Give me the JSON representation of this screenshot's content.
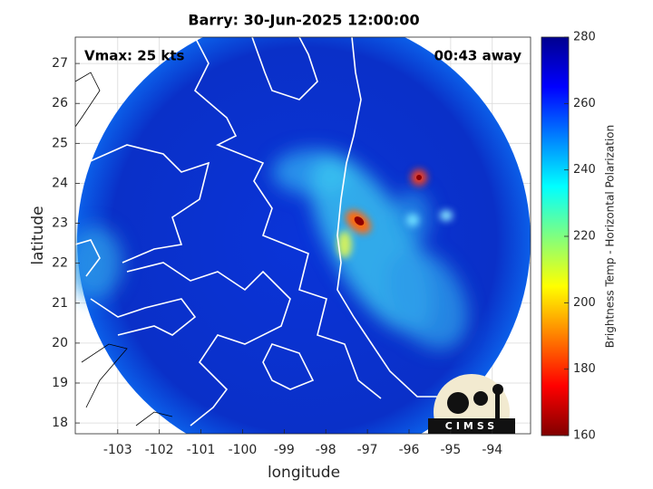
{
  "chart_data": {
    "type": "map",
    "title": "Barry: 30-Jun-2025 12:00:00",
    "annotations": [
      "Vmax: 25 kts",
      "00:43 away"
    ],
    "xlabel": "longitude",
    "ylabel": "latitude",
    "xlim": [
      -104.02,
      -93.08
    ],
    "ylim": [
      17.73,
      27.66
    ],
    "xticks": [
      -103,
      -102,
      -101,
      -100,
      -99,
      -98,
      -97,
      -96,
      -95,
      -94
    ],
    "yticks": [
      18,
      19,
      20,
      21,
      22,
      23,
      24,
      25,
      26,
      27
    ],
    "grid": true,
    "colorbar": {
      "label": "Brightness Temp - Horizontal Polarization",
      "clim": [
        160,
        280
      ],
      "ticks": [
        160,
        180,
        200,
        220,
        240,
        260,
        280
      ],
      "colormap": "jet-reversed"
    },
    "logo": "CIMSS"
  }
}
